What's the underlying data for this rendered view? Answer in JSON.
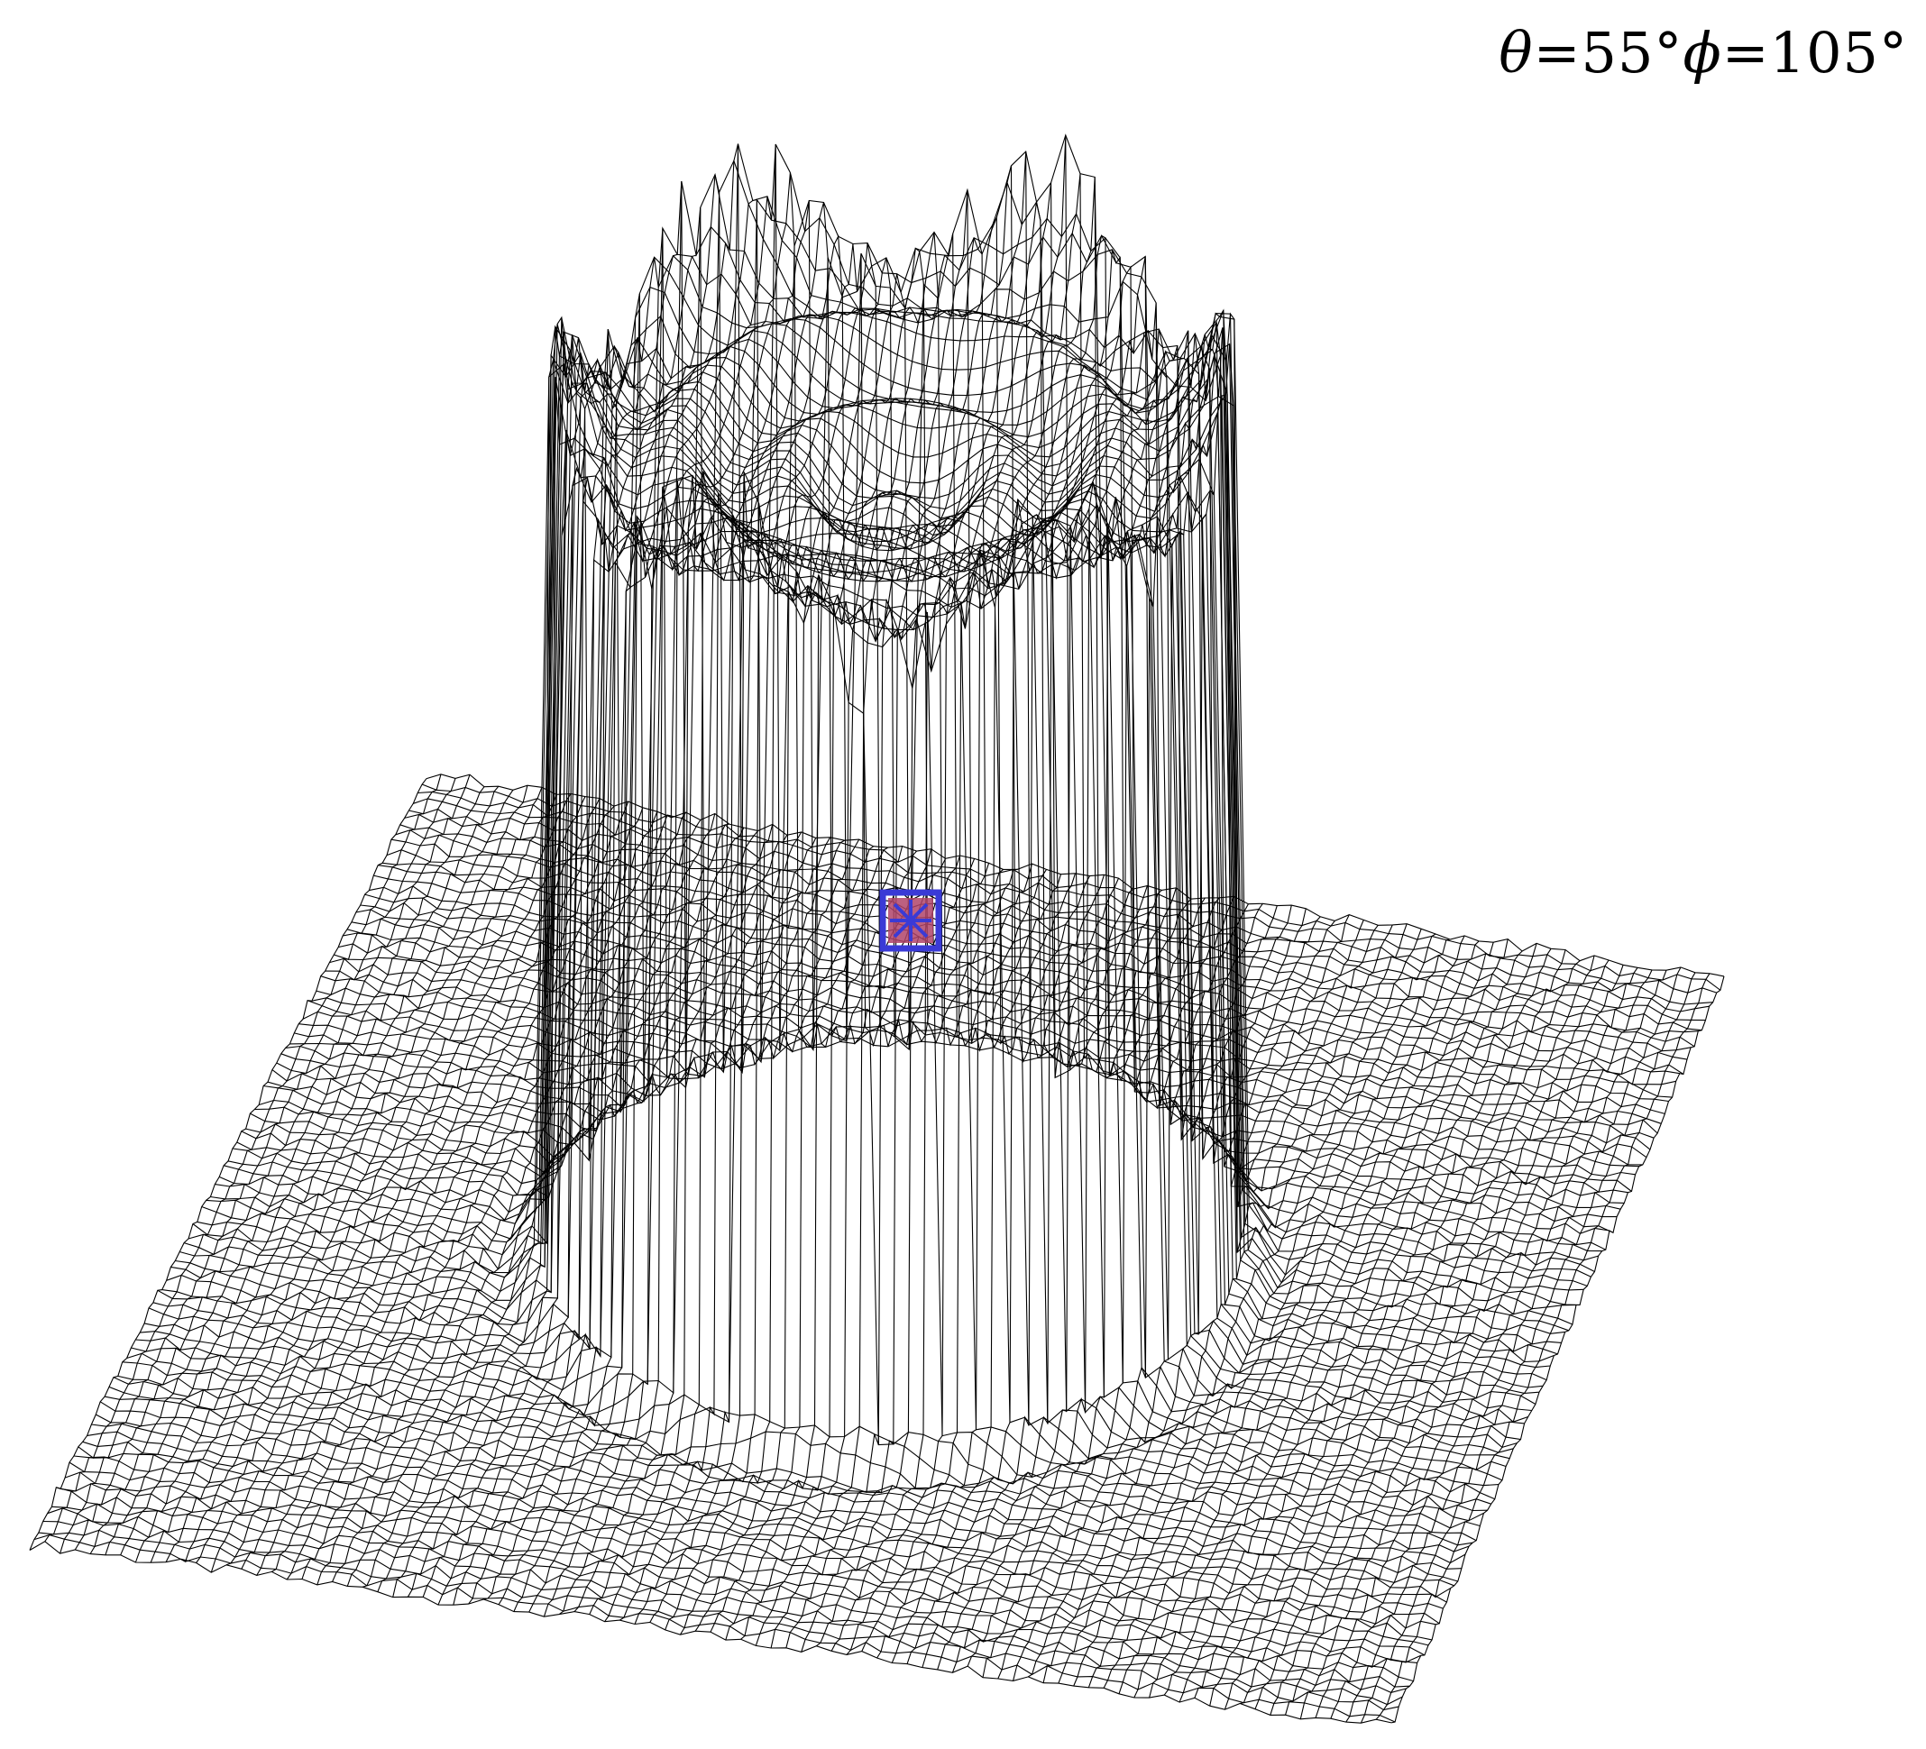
{
  "view_label": {
    "theta_symbol": "θ",
    "theta_value": "=55°",
    "phi_symbol": "ϕ",
    "phi_value": "=105°"
  },
  "colors": {
    "background": "#ffffff",
    "mesh_line": "#000000",
    "marker_box": "#3a3ad6",
    "marker_fill": "#b0446a"
  },
  "icons": {
    "marker": "asterisk-in-box-icon"
  }
}
